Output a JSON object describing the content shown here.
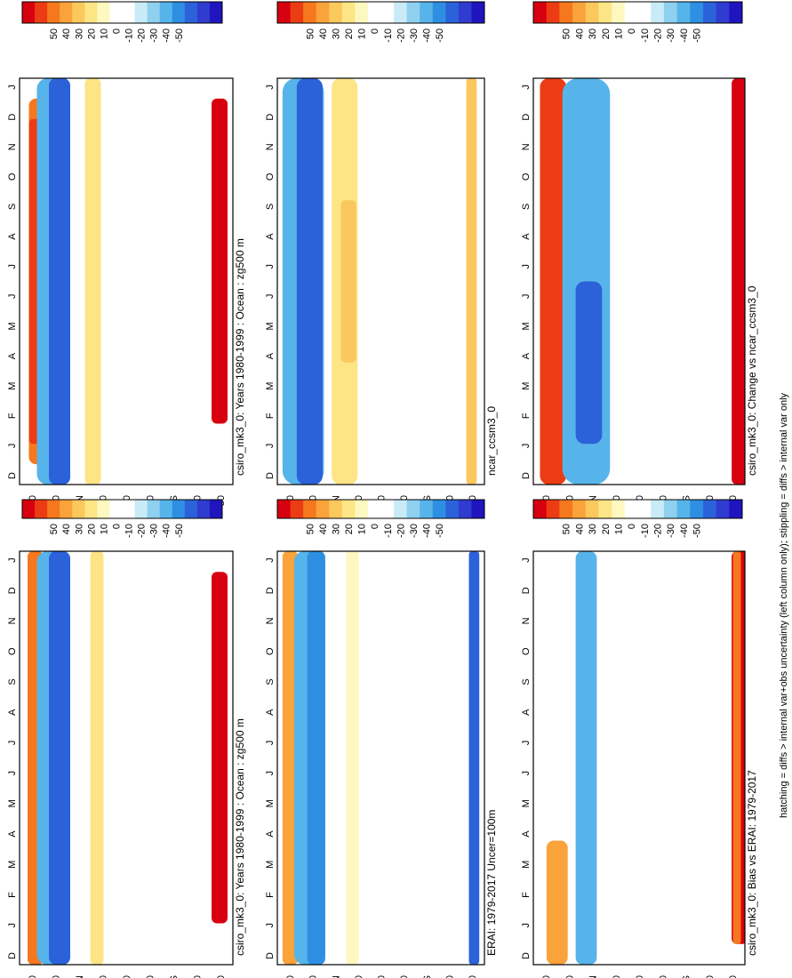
{
  "figure": {
    "footnote": "hatching = diffs > internal var+obs uncertainty (left column only); stippling = diffs > internal var only"
  },
  "colorbar": {
    "levels": [
      "50",
      "40",
      "30",
      "20",
      "10",
      "0",
      "-10",
      "-20",
      "-30",
      "-40",
      "-50"
    ],
    "colors": [
      "#d7000f",
      "#ec3c14",
      "#f6781e",
      "#f9a33a",
      "#fbc85e",
      "#fde585",
      "#fdf8c0",
      "#ffffff",
      "#ffffff",
      "#c9ebf7",
      "#8fd0ef",
      "#57b4ea",
      "#2e8fe2",
      "#2c62d9",
      "#2f3ccf",
      "#1f14bd"
    ]
  },
  "axes": {
    "months": [
      "D",
      "J",
      "F",
      "M",
      "A",
      "M",
      "J",
      "J",
      "A",
      "S",
      "O",
      "N",
      "D",
      "J"
    ],
    "lat_ticks": [
      "80",
      "60",
      "°N",
      "20",
      "0",
      "20",
      "°S",
      "60",
      "80"
    ]
  },
  "panels": [
    {
      "title": "csiro_mk3_0: Years 1980-1999 : Ocean : zg500 m"
    },
    {
      "title": "csiro_mk3_0: Years 1980-1999 : Ocean : zg500 m"
    },
    {
      "title": "ERAI: 1979-2017 Uncer=100m"
    },
    {
      "title": "ncar_ccsm3_0"
    },
    {
      "title": "csiro_mk3_0: Bias vs ERAI: 1979-2017"
    },
    {
      "title": "csiro_mk3_0: Change vs ncar_ccsm3_0"
    }
  ],
  "chart_data": [
    {
      "type": "heatmap",
      "title": "csiro_mk3_0: Years 1980-1999 : Ocean : zg500 m",
      "xlabel": "",
      "ylabel": "",
      "x": [
        "D",
        "J",
        "F",
        "M",
        "A",
        "M",
        "J",
        "J",
        "A",
        "S",
        "O",
        "N",
        "D",
        "J"
      ],
      "y_ticks": [
        "80",
        "60",
        "°N",
        "20",
        "0",
        "20",
        "°S",
        "60",
        "80"
      ],
      "zlim": [
        -50,
        50
      ],
      "features": [
        "positive band near 65N",
        "negative band 35-60N",
        "strong positive near 70S"
      ]
    },
    {
      "type": "heatmap",
      "title": "csiro_mk3_0: Years 1980-1999 : Ocean : zg500 m",
      "xlabel": "",
      "ylabel": "",
      "x": [
        "D",
        "J",
        "F",
        "M",
        "A",
        "M",
        "J",
        "J",
        "A",
        "S",
        "O",
        "N",
        "D",
        "J"
      ],
      "y_ticks": [
        "80",
        "60",
        "°N",
        "20",
        "0",
        "20",
        "°S",
        "60",
        "80"
      ],
      "zlim": [
        -50,
        50
      ],
      "features": [
        "positive band near 65N",
        "negative band 35-60N",
        "strong positive near 70S"
      ]
    },
    {
      "type": "heatmap",
      "title": "ERAI: 1979-2017 Uncer=100m",
      "xlabel": "",
      "ylabel": "",
      "x": [
        "D",
        "J",
        "F",
        "M",
        "A",
        "M",
        "J",
        "J",
        "A",
        "S",
        "O",
        "N",
        "D",
        "J"
      ],
      "y_ticks": [
        "80",
        "60",
        "°N",
        "20",
        "0",
        "20",
        "°S",
        "60",
        "80"
      ],
      "zlim": [
        -50,
        50
      ],
      "features": [
        "positive band near 70N",
        "negative band 35-60N",
        "weak negative near 70S"
      ]
    },
    {
      "type": "heatmap",
      "title": "ncar_ccsm3_0",
      "xlabel": "",
      "ylabel": "",
      "x": [
        "D",
        "J",
        "F",
        "M",
        "A",
        "M",
        "J",
        "J",
        "A",
        "S",
        "O",
        "N",
        "D",
        "J"
      ],
      "y_ticks": [
        "80",
        "60",
        "°N",
        "20",
        "0",
        "20",
        "°S",
        "60",
        "80"
      ],
      "zlim": [
        -50,
        50
      ],
      "features": [
        "negative band 40-70N",
        "positive band near 25N",
        "weak positive near 70S"
      ]
    },
    {
      "type": "heatmap",
      "title": "csiro_mk3_0: Bias vs ERAI: 1979-2017",
      "xlabel": "",
      "ylabel": "",
      "x": [
        "D",
        "J",
        "F",
        "M",
        "A",
        "M",
        "J",
        "J",
        "A",
        "S",
        "O",
        "N",
        "D",
        "J"
      ],
      "y_ticks": [
        "80",
        "60",
        "°N",
        "20",
        "0",
        "20",
        "°S",
        "60",
        "80"
      ],
      "zlim": [
        -50,
        50
      ],
      "features": [
        "positive near 60N in winter",
        "negative 30-50N",
        "strong positive near 75S"
      ]
    },
    {
      "type": "heatmap",
      "title": "csiro_mk3_0: Change vs ncar_ccsm3_0",
      "xlabel": "",
      "ylabel": "",
      "x": [
        "D",
        "J",
        "F",
        "M",
        "A",
        "M",
        "J",
        "J",
        "A",
        "S",
        "O",
        "N",
        "D",
        "J"
      ],
      "y_ticks": [
        "80",
        "60",
        "°N",
        "20",
        "0",
        "20",
        "°S",
        "60",
        "80"
      ],
      "zlim": [
        -50,
        50
      ],
      "features": [
        "strong positive near 65N",
        "negative band 20-55N",
        "strong positive near 75S"
      ]
    }
  ]
}
